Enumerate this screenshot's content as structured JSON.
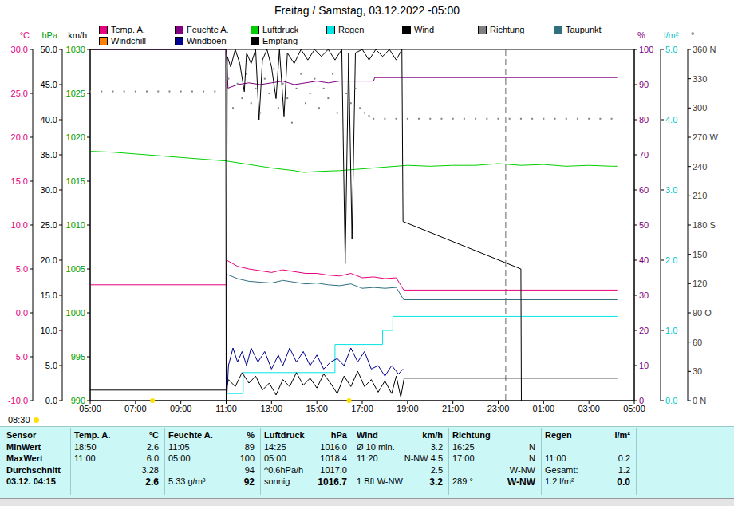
{
  "chart_data": {
    "type": "line",
    "title": "Freitag / Samstag, 03.12.2022 -05:00",
    "grid": false,
    "corner_text": "08:30",
    "marker_x": 23.33,
    "sun_marks": [
      7.75,
      16.42
    ],
    "xlim": [
      5,
      29
    ],
    "xticks": [
      {
        "value": 5,
        "label": "05:00"
      },
      {
        "value": 7,
        "label": "07:00"
      },
      {
        "value": 9,
        "label": "09:00"
      },
      {
        "value": 11,
        "label": "11:00"
      },
      {
        "value": 13,
        "label": "13:00"
      },
      {
        "value": 15,
        "label": "15:00"
      },
      {
        "value": 17,
        "label": "17:00"
      },
      {
        "value": 19,
        "label": "19:00"
      },
      {
        "value": 21,
        "label": "21:00"
      },
      {
        "value": 23,
        "label": "23:00"
      },
      {
        "value": 25,
        "label": "01:00"
      },
      {
        "value": 27,
        "label": "03:00"
      },
      {
        "value": 29,
        "label": "05:00"
      }
    ],
    "y_axes": [
      {
        "label": "°C",
        "color": "#e6007e",
        "ylim": [
          -10,
          30
        ],
        "yticks": [
          {
            "value": 30,
            "label": "30.0"
          },
          {
            "value": 25,
            "label": "25.0"
          },
          {
            "value": 20,
            "label": "20.0"
          },
          {
            "value": 15,
            "label": "15.0"
          },
          {
            "value": 10,
            "label": "10.0"
          },
          {
            "value": 5,
            "label": "5.0"
          },
          {
            "value": 0,
            "label": "0.0"
          },
          {
            "value": -5,
            "label": "-5.0"
          },
          {
            "value": -10,
            "label": "-10.0"
          }
        ]
      },
      {
        "label": "hPa",
        "color": "#00a000",
        "ylim": [
          990,
          1030
        ],
        "yticks": [
          1030,
          1025,
          1020,
          1015,
          1010,
          1005,
          1000,
          995,
          990
        ]
      },
      {
        "label": "km/h",
        "color": "#000000",
        "ylim": [
          0,
          50
        ],
        "yticks": [
          {
            "value": 50,
            "label": "50.0"
          },
          {
            "value": 45,
            "label": "45.0"
          },
          {
            "value": 40,
            "label": "40.0"
          },
          {
            "value": 35,
            "label": "35.0"
          },
          {
            "value": 30,
            "label": "30.0"
          },
          {
            "value": 25,
            "label": "25.0"
          },
          {
            "value": 20,
            "label": "20.0"
          },
          {
            "value": 15,
            "label": "15.0"
          },
          {
            "value": 10,
            "label": "10.0"
          },
          {
            "value": 5,
            "label": "5.0"
          },
          {
            "value": 0,
            "label": "0.0"
          }
        ]
      },
      {
        "label": "%",
        "color": "#800080",
        "ylim": [
          0,
          100
        ],
        "yticks": [
          100,
          90,
          80,
          70,
          60,
          50,
          40,
          30,
          20,
          10,
          0
        ]
      },
      {
        "label": "l/m²",
        "color": "#00c8c8",
        "ylim": [
          0,
          5
        ],
        "yticks": [
          {
            "value": 5,
            "label": "5.0"
          },
          {
            "value": 4,
            "label": "4.0"
          },
          {
            "value": 3,
            "label": "3.0"
          },
          {
            "value": 2,
            "label": "2.0"
          },
          {
            "value": 1,
            "label": "1.0"
          },
          {
            "value": 0,
            "label": "0.0"
          }
        ]
      },
      {
        "label": "°",
        "color": "#404040",
        "ylim": [
          0,
          360
        ],
        "yticks": [
          {
            "value": 360,
            "label": "360 N"
          },
          330,
          300,
          {
            "value": 270,
            "label": "270 W"
          },
          240,
          210,
          {
            "value": 180,
            "label": "180 S"
          },
          150,
          120,
          {
            "value": 90,
            "label": "90 O"
          },
          60,
          30,
          {
            "value": 0,
            "label": "0 N"
          }
        ]
      }
    ],
    "series": [
      {
        "name": "Temp. A.",
        "color": "#e6007e",
        "type": "line",
        "axis": "°C",
        "x": [
          5,
          11,
          11.02,
          11.5,
          12,
          12.5,
          13,
          13.5,
          14,
          14.5,
          15,
          15.5,
          16,
          16.5,
          17,
          17.5,
          18,
          18.5,
          18.83,
          28.25
        ],
        "values": [
          3.2,
          3.2,
          6.0,
          5.3,
          5.0,
          4.8,
          4.6,
          4.9,
          4.7,
          4.5,
          4.5,
          4.3,
          4.2,
          4.5,
          4.0,
          4.1,
          3.9,
          4.0,
          2.6,
          2.6
        ]
      },
      {
        "name": "Feuchte A.",
        "color": "#800080",
        "type": "line",
        "axis": "%",
        "x": [
          5,
          11,
          11.08,
          11.5,
          12,
          12.5,
          13,
          13.5,
          14,
          14.5,
          15,
          15.5,
          16,
          16.5,
          17,
          17.5,
          17.55,
          28.25
        ],
        "values": [
          100,
          100,
          89,
          90,
          90.5,
          90,
          90.5,
          91,
          90,
          90.5,
          91,
          90.5,
          91,
          91,
          91,
          91,
          92,
          92
        ]
      },
      {
        "name": "Luftdruck",
        "color": "#00d000",
        "type": "line",
        "axis": "hPa",
        "x": [
          5,
          6,
          7,
          8,
          9,
          10,
          11,
          12,
          13,
          14,
          14.42,
          15,
          16,
          17,
          18,
          19,
          20,
          21,
          22,
          23,
          24,
          25,
          26,
          27,
          28,
          28.25
        ],
        "values": [
          1018.4,
          1018.3,
          1018.1,
          1017.9,
          1017.7,
          1017.5,
          1017.3,
          1016.9,
          1016.5,
          1016.2,
          1016.0,
          1016.1,
          1016.2,
          1016.4,
          1016.6,
          1016.8,
          1016.7,
          1016.8,
          1016.8,
          1017.0,
          1016.8,
          1016.9,
          1016.7,
          1016.8,
          1016.7,
          1016.7
        ]
      },
      {
        "name": "Regen",
        "color": "#00e5e5",
        "type": "line",
        "axis": "l/m²",
        "x": [
          11,
          11.02,
          11.75,
          11.75,
          15.8,
          15.8,
          17.9,
          17.9,
          18.35,
          18.35,
          28.25
        ],
        "values": [
          0,
          0.1,
          0.1,
          0.4,
          0.4,
          0.8,
          0.8,
          1.0,
          1.0,
          1.2,
          1.2
        ]
      },
      {
        "name": "Wind",
        "color": "#000000",
        "type": "line",
        "axis": "km/h",
        "x": [
          5,
          11,
          11.1,
          11.4,
          11.7,
          12.0,
          12.3,
          12.6,
          12.9,
          13.2,
          13.5,
          13.8,
          14.1,
          14.4,
          14.7,
          15.0,
          15.3,
          15.6,
          15.9,
          16.2,
          16.5,
          16.8,
          17.1,
          17.4,
          17.7,
          18.0,
          18.3,
          18.5,
          18.7,
          18.85,
          28.25
        ],
        "values": [
          1.5,
          1.5,
          3.0,
          2.0,
          4.0,
          2.5,
          3.5,
          1.5,
          2.5,
          0.8,
          3.0,
          2.0,
          4.0,
          2.2,
          3.2,
          1.8,
          3.8,
          2.5,
          1.0,
          3.5,
          2.0,
          4.2,
          2.0,
          3.0,
          1.2,
          2.8,
          1.0,
          3.5,
          0.5,
          3.2,
          3.2
        ]
      },
      {
        "name": "Richtung",
        "color": "#808080",
        "type": "scatter",
        "marker": "dot",
        "axis": "°",
        "x": [
          5,
          5.5,
          6,
          6.5,
          7,
          7.5,
          8,
          8.5,
          9,
          9.5,
          10,
          10.5,
          11,
          11.1,
          11.3,
          11.5,
          11.7,
          11.9,
          12.1,
          12.3,
          12.5,
          12.7,
          12.9,
          13.1,
          13.3,
          13.5,
          13.7,
          13.9,
          14.1,
          14.3,
          14.5,
          14.7,
          14.9,
          15.1,
          15.3,
          15.5,
          15.7,
          15.9,
          16.1,
          16.3,
          16.5,
          16.7,
          16.9,
          17.1,
          17.3,
          17.5,
          18,
          18.5,
          19,
          19.5,
          20,
          20.5,
          21,
          21.5,
          22,
          22.5,
          23,
          23.5,
          24,
          24.5,
          25,
          25.5,
          26,
          26.5,
          27,
          27.5,
          28
        ],
        "values": [
          317,
          317,
          317,
          317,
          317,
          317,
          317,
          317,
          317,
          317,
          317,
          317,
          317,
          330,
          300,
          325,
          310,
          335,
          305,
          320,
          295,
          330,
          315,
          340,
          300,
          325,
          310,
          285,
          320,
          335,
          305,
          315,
          330,
          300,
          320,
          310,
          335,
          295,
          325,
          315,
          305,
          320,
          300,
          295,
          292,
          289,
          289,
          289,
          289,
          289,
          289,
          289,
          289,
          289,
          289,
          289,
          289,
          289,
          289,
          289,
          289,
          289,
          289,
          289,
          289,
          289,
          289
        ]
      },
      {
        "name": "Taupunkt",
        "color": "#307080",
        "type": "line",
        "axis": "°C",
        "x": [
          11.02,
          11.5,
          12,
          12.5,
          13,
          13.5,
          14,
          14.5,
          15,
          15.5,
          16,
          16.5,
          17,
          17.5,
          18,
          18.5,
          18.83,
          28.25
        ],
        "values": [
          4.4,
          3.9,
          3.6,
          3.5,
          3.4,
          3.7,
          3.5,
          3.3,
          3.4,
          3.2,
          3.1,
          3.3,
          2.8,
          2.9,
          2.8,
          2.9,
          1.5,
          1.5
        ]
      },
      {
        "name": "Windchill",
        "color": "#ff8000",
        "type": "line",
        "axis": "°C",
        "x": [],
        "values": []
      },
      {
        "name": "Windböen",
        "color": "#000090",
        "type": "line",
        "axis": "km/h",
        "x": [
          11.02,
          11.1,
          11.3,
          11.5,
          11.7,
          11.9,
          12.1,
          12.4,
          12.7,
          13.0,
          13.3,
          13.5,
          13.8,
          14.1,
          14.4,
          14.7,
          15.0,
          15.3,
          15.6,
          15.9,
          16.2,
          16.5,
          16.8,
          17.1,
          17.4,
          17.7,
          18.0,
          18.3,
          18.6,
          18.8
        ],
        "values": [
          0,
          5.0,
          7.5,
          5.5,
          7.0,
          5.0,
          7.5,
          5.5,
          7.0,
          4.5,
          6.5,
          5.0,
          7.5,
          5.5,
          7.0,
          5.0,
          6.5,
          4.5,
          5.5,
          6.0,
          5.0,
          7.5,
          5.5,
          7.0,
          4.5,
          5.0,
          3.5,
          5.0,
          3.8,
          4.5
        ]
      },
      {
        "name": "Empfang",
        "color": "#000000",
        "type": "line",
        "axis": "%",
        "x": [
          5,
          10.98,
          11.0,
          11.05,
          11.2,
          11.4,
          11.6,
          11.8,
          11.9,
          12.1,
          12.3,
          12.45,
          12.6,
          12.8,
          13.0,
          13.2,
          13.35,
          13.55,
          13.7,
          14.0,
          14.3,
          14.6,
          14.9,
          15.2,
          15.5,
          15.8,
          16.1,
          16.25,
          16.4,
          16.55,
          16.7,
          17.0,
          17.3,
          17.6,
          17.9,
          18.2,
          18.5,
          18.75,
          18.8,
          24.0,
          24.02
        ],
        "values": [
          100,
          100,
          0,
          98,
          95,
          100,
          96,
          88,
          99,
          96,
          100,
          80,
          97,
          100,
          95,
          86,
          100,
          81,
          99,
          96,
          100,
          97,
          100,
          98,
          100,
          97,
          100,
          39,
          99,
          46,
          99,
          100,
          97,
          100,
          98,
          100,
          97,
          100,
          51,
          37.5,
          0
        ]
      }
    ]
  },
  "panel": {
    "header": [
      "Sensor",
      {
        "left": "Temp. A.",
        "right": "°C"
      },
      {
        "left": "Feuchte A.",
        "right": "%"
      },
      {
        "left": "Luftdruck",
        "right": "hPa"
      },
      {
        "left": "Wind",
        "right": "km/h"
      },
      {
        "left": "Richtung"
      },
      {
        "left": "Regen",
        "right": "l/m²"
      }
    ],
    "rows": [
      {
        "label": "MinWert",
        "cells": [
          {
            "left": "18:50",
            "right": "2.6"
          },
          {
            "left": "11:05",
            "right": "89"
          },
          {
            "left": "14:25",
            "right": "1016.0"
          },
          {
            "left": "Ø 10 min.",
            "right": "3.2"
          },
          {
            "left": "16:25",
            "right": "N"
          },
          {}
        ]
      },
      {
        "label": "MaxWert",
        "cells": [
          {
            "left": "11:00",
            "right": "6.0"
          },
          {
            "left": "05:00",
            "right": "100"
          },
          {
            "left": "05:00",
            "right": "1018.4"
          },
          {
            "left": "11:20",
            "right": "N-NW 4.5"
          },
          {
            "left": "17:00",
            "right": "N"
          },
          {
            "left": "11:00",
            "right": "0.2"
          }
        ]
      },
      {
        "label": "Durchschnitt",
        "cells": [
          {
            "right": "3.28"
          },
          {
            "right": "94"
          },
          {
            "left": "^0.6hPa/h",
            "right": "1017.0"
          },
          {
            "right": "2.5"
          },
          {
            "right": "W-NW"
          },
          {
            "left": "Gesamt:",
            "right": "1.2"
          }
        ]
      },
      {
        "label": "03.12. 04:15",
        "cells": [
          {
            "right": "2.6"
          },
          {
            "left": "5.33 g/m³",
            "right": "92"
          },
          {
            "left": "sonnig",
            "right": "1016.7"
          },
          {
            "left": "1 Bft W-NW",
            "right": "3.2"
          },
          {
            "left": "289 °",
            "right": "W-NW"
          },
          {
            "left": "1.2 l/m²",
            "right": "0.0"
          }
        ]
      }
    ]
  }
}
